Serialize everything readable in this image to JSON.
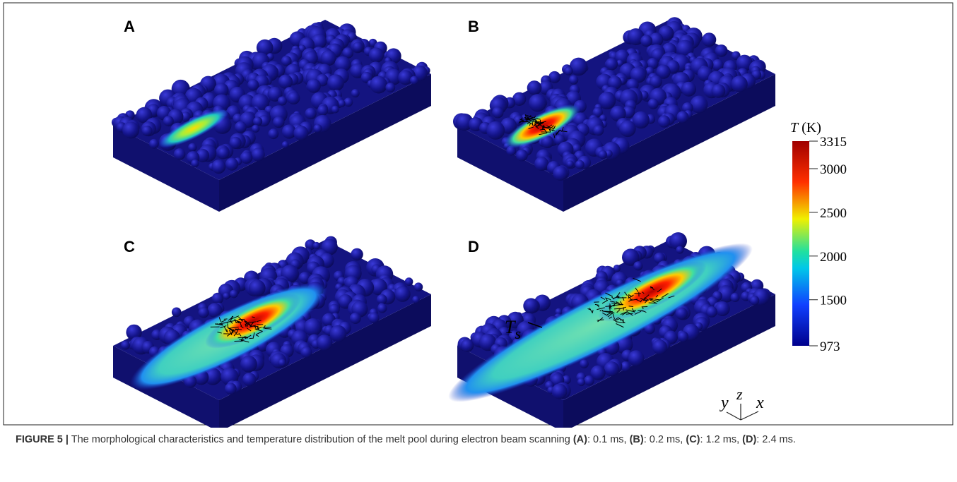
{
  "figure": {
    "panels": [
      {
        "label": "A"
      },
      {
        "label": "B"
      },
      {
        "label": "C"
      },
      {
        "label": "D"
      }
    ],
    "isotherm_label": {
      "symbol": "T",
      "subscript": "s"
    },
    "colorbar": {
      "variable": "T",
      "unit": "(K)",
      "clim": [
        973,
        3315
      ],
      "ticks": [
        3315,
        3000,
        2500,
        2000,
        1500,
        973
      ]
    },
    "axes_triad": {
      "y": "y",
      "z": "z",
      "x": "x"
    }
  },
  "caption": {
    "label": "FIGURE 5 |",
    "parts": [
      {
        "text": " The morphological characteristics and temperature distribution of the melt pool during electron beam scanning ",
        "bold": false
      },
      {
        "text": "(A)",
        "bold": true
      },
      {
        "text": ": 0.1 ms, ",
        "bold": false
      },
      {
        "text": "(B)",
        "bold": true
      },
      {
        "text": ": 0.2 ms, ",
        "bold": false
      },
      {
        "text": "(C)",
        "bold": true
      },
      {
        "text": ": 1.2 ms, ",
        "bold": false
      },
      {
        "text": "(D)",
        "bold": true
      },
      {
        "text": ": 2.4 ms.",
        "bold": false
      }
    ]
  }
}
